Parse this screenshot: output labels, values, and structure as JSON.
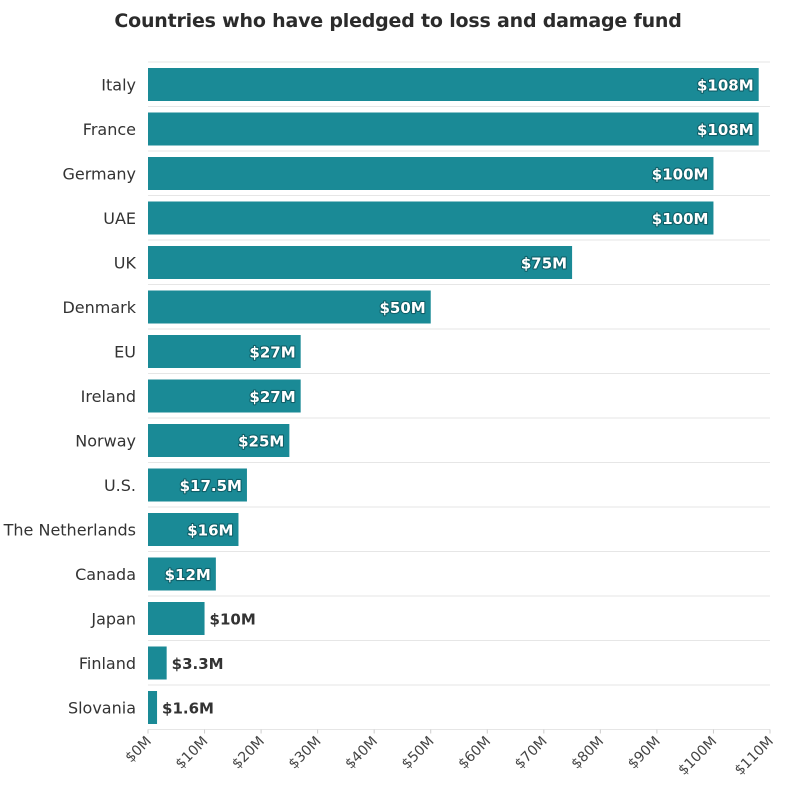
{
  "chart_data": {
    "type": "bar",
    "orientation": "horizontal",
    "title": "Countries who have pledged to loss and damage fund",
    "xlabel": "",
    "ylabel": "",
    "categories": [
      "Italy",
      "France",
      "Germany",
      "UAE",
      "UK",
      "Denmark",
      "EU",
      "Ireland",
      "Norway",
      "U.S.",
      "The Netherlands",
      "Canada",
      "Japan",
      "Finland",
      "Slovania"
    ],
    "values": [
      108,
      108,
      100,
      100,
      75,
      50,
      27,
      27,
      25,
      17.5,
      16,
      12,
      10,
      3.3,
      1.6
    ],
    "value_labels": [
      "$108M",
      "$108M",
      "$100M",
      "$100M",
      "$75M",
      "$50M",
      "$27M",
      "$27M",
      "$25M",
      "$17.5M",
      "$16M",
      "$12M",
      "$10M",
      "$3.3M",
      "$1.6M"
    ],
    "xlim": [
      0,
      110
    ],
    "x_ticks": [
      0,
      10,
      20,
      30,
      40,
      50,
      60,
      70,
      80,
      90,
      100,
      110
    ],
    "x_tick_labels": [
      "$0M",
      "$10M",
      "$20M",
      "$30M",
      "$40M",
      "$50M",
      "$60M",
      "$70M",
      "$80M",
      "$90M",
      "$100M",
      "$110M"
    ],
    "grid": "horizontal",
    "legend": "none",
    "bar_color": "#1a8a96",
    "label_inside_color": "#ffffff",
    "label_outside_color": "#333333"
  }
}
